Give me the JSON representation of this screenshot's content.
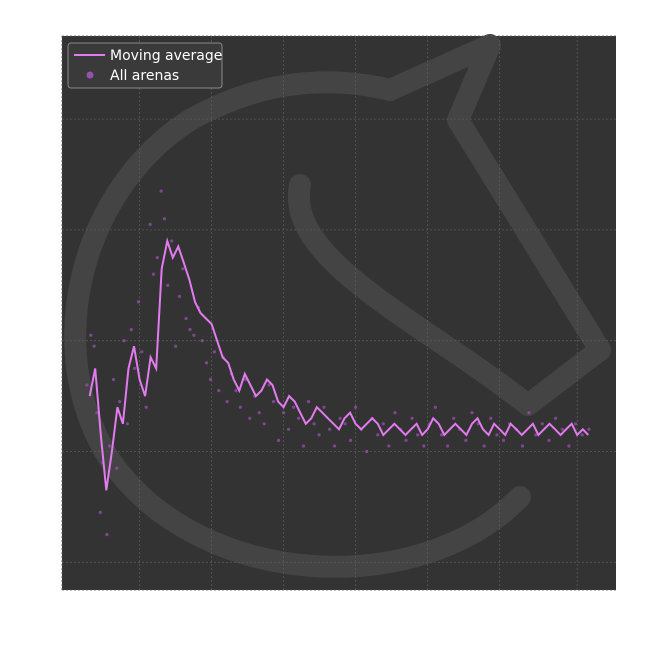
{
  "chart_data": {
    "type": "line",
    "title": "",
    "xlabel": "",
    "ylabel": "",
    "xlim": [
      0,
      100
    ],
    "ylim": [
      0,
      100
    ],
    "grid": true,
    "legend_placement": "top-left",
    "colors": {
      "background": "#333333",
      "grid": "#5a5a5a",
      "line": "#e37bf0",
      "points": "#9a4fb0",
      "watermark": "#444444"
    },
    "series": [
      {
        "name": "Moving average",
        "kind": "line",
        "x": [
          5,
          6,
          7,
          8,
          9,
          10,
          11,
          12,
          13,
          14,
          15,
          16,
          17,
          18,
          19,
          20,
          21,
          22,
          23,
          24,
          25,
          26,
          27,
          28,
          29,
          30,
          31,
          32,
          33,
          34,
          35,
          36,
          37,
          38,
          39,
          40,
          41,
          42,
          43,
          44,
          45,
          46,
          47,
          48,
          49,
          50,
          51,
          52,
          53,
          54,
          55,
          56,
          57,
          58,
          59,
          60,
          61,
          62,
          63,
          64,
          65,
          66,
          67,
          68,
          69,
          70,
          71,
          72,
          73,
          74,
          75,
          76,
          77,
          78,
          79,
          80,
          81,
          82,
          83,
          84,
          85,
          86,
          87,
          88,
          89,
          90,
          91,
          92,
          93,
          94,
          95
        ],
        "y": [
          35,
          40,
          28,
          18,
          25,
          33,
          30,
          40,
          44,
          38,
          35,
          42,
          40,
          58,
          63,
          60,
          62,
          59,
          56,
          52,
          50,
          49,
          48,
          45,
          42,
          41,
          38,
          36,
          39,
          37,
          35,
          36,
          38,
          37,
          34,
          33,
          35,
          34,
          32,
          30,
          31,
          33,
          32,
          31,
          30,
          29,
          31,
          32,
          30,
          29,
          30,
          31,
          30,
          28,
          29,
          30,
          29,
          28,
          29,
          30,
          28,
          29,
          31,
          30,
          28,
          29,
          30,
          29,
          28,
          30,
          31,
          29,
          28,
          30,
          29,
          28,
          30,
          29,
          28,
          29,
          30,
          28,
          29,
          30,
          29,
          28,
          29,
          30,
          28,
          29,
          28
        ]
      },
      {
        "name": "All arenas",
        "kind": "scatter",
        "x": [
          4.5,
          5.2,
          5.8,
          6.3,
          6.9,
          7.4,
          8.1,
          8.6,
          9.3,
          9.9,
          10.4,
          11.2,
          11.8,
          12.5,
          13.1,
          13.8,
          14.4,
          15.2,
          15.9,
          16.5,
          17.2,
          17.9,
          18.5,
          19.1,
          19.8,
          20.5,
          21.2,
          21.8,
          22.4,
          23.1,
          23.8,
          24.6,
          25.3,
          26.1,
          26.8,
          27.5,
          28.3,
          29.1,
          29.8,
          30.6,
          31.4,
          32.2,
          33.1,
          33.9,
          34.8,
          35.6,
          36.5,
          37.4,
          38.2,
          39.1,
          40.0,
          40.9,
          41.8,
          42.7,
          43.6,
          44.5,
          45.5,
          46.4,
          47.3,
          48.3,
          49.2,
          50.2,
          51.1,
          52.1,
          53.0,
          54.0,
          55.0,
          56.0,
          57.0,
          58.0,
          59.0,
          60.1,
          61.1,
          62.1,
          63.2,
          64.2,
          65.3,
          66.4,
          67.4,
          68.5,
          69.6,
          70.7,
          71.8,
          72.9,
          74.0,
          75.1,
          76.2,
          77.4,
          78.5,
          79.7,
          80.8,
          82.0,
          83.1,
          84.3,
          85.5,
          86.7,
          87.9,
          89.1,
          90.3,
          91.5,
          92.7,
          93.9,
          95.1
        ],
        "y": [
          37,
          46,
          44,
          32,
          14,
          23,
          10,
          26,
          38,
          22,
          34,
          45,
          30,
          47,
          40,
          52,
          43,
          33,
          66,
          57,
          60,
          72,
          67,
          55,
          63,
          44,
          53,
          58,
          49,
          47,
          46,
          51,
          45,
          41,
          38,
          43,
          36,
          42,
          34,
          39,
          36,
          33,
          38,
          31,
          35,
          32,
          30,
          37,
          34,
          27,
          32,
          29,
          33,
          31,
          26,
          34,
          30,
          28,
          33,
          29,
          26,
          31,
          30,
          27,
          33,
          29,
          25,
          31,
          28,
          30,
          26,
          32,
          29,
          27,
          31,
          28,
          26,
          30,
          33,
          28,
          26,
          31,
          29,
          27,
          32,
          30,
          26,
          31,
          28,
          27,
          30,
          29,
          26,
          32,
          28,
          30,
          27,
          31,
          29,
          26,
          30,
          28,
          29
        ]
      }
    ]
  }
}
